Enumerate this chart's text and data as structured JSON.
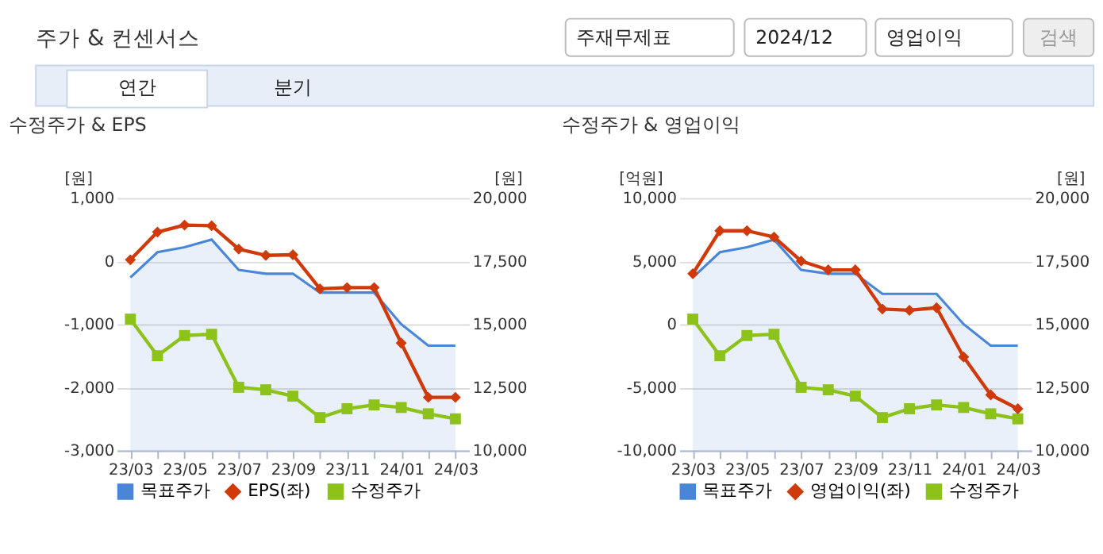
{
  "chart_data": [
    {
      "type": "line",
      "title": "수정주가 & EPS",
      "annotations": [
        "주가 & 컨센서스",
        "주재무제표",
        "2024/12",
        "영업이익",
        "검색",
        "연간",
        "분기"
      ],
      "categories": [
        "23/03",
        null,
        "23/05",
        null,
        "23/07",
        null,
        "23/09",
        null,
        "23/11",
        null,
        "24/01",
        null,
        "24/03"
      ],
      "series": [
        {
          "name": "목표주가",
          "type": "area",
          "axis": "y2",
          "marker": "none",
          "color": "#4a86d8",
          "values": [
            16850,
            17850,
            18050,
            18350,
            17150,
            17000,
            17000,
            16250,
            16250,
            16250,
            15000,
            14150,
            14150
          ]
        },
        {
          "name": "EPS(좌)",
          "type": "line",
          "axis": "y",
          "marker": "diamond",
          "color": "#d03a0b",
          "values": [
            20,
            460,
            570,
            560,
            190,
            90,
            100,
            -440,
            -420,
            -420,
            -1300,
            -2160,
            -2160
          ]
        },
        {
          "name": "수정주가",
          "type": "line",
          "axis": "y2",
          "marker": "square",
          "color": "#8cc21a",
          "values": [
            15200,
            13750,
            14550,
            14600,
            12500,
            12400,
            12150,
            11300,
            11650,
            11800,
            11700,
            11450,
            11250
          ]
        }
      ],
      "ylabel": "[원]",
      "y2label": "[원]",
      "ylim": [
        -3000,
        1000
      ],
      "yticks": [
        {
          "value": -3000,
          "label": "-3,000"
        },
        {
          "value": -2000,
          "label": "-2,000"
        },
        {
          "value": -1000,
          "label": "-1,000"
        },
        0,
        {
          "value": 1000,
          "label": "1,000"
        }
      ],
      "y2lim": [
        10000,
        20000
      ],
      "y2ticks": [
        {
          "value": 10000,
          "label": "10,000"
        },
        {
          "value": 12500,
          "label": "12,500"
        },
        {
          "value": 15000,
          "label": "15,000"
        },
        {
          "value": 17500,
          "label": "17,500"
        },
        {
          "value": 20000,
          "label": "20,000"
        }
      ],
      "grid": "y",
      "legend": "bottom"
    },
    {
      "type": "line",
      "title": "수정주가 & 영업이익",
      "categories": [
        "23/03",
        null,
        "23/05",
        null,
        "23/07",
        null,
        "23/09",
        null,
        "23/11",
        null,
        "24/01",
        null,
        "24/03"
      ],
      "series": [
        {
          "name": "목표주가",
          "type": "area",
          "axis": "y2",
          "marker": "none",
          "color": "#4a86d8",
          "values": [
            16850,
            17850,
            18050,
            18350,
            17150,
            17000,
            17000,
            16200,
            16200,
            16200,
            15000,
            14150,
            14150
          ]
        },
        {
          "name": "영업이익(좌)",
          "type": "line",
          "axis": "y",
          "marker": "diamond",
          "color": "#d03a0b",
          "values": [
            4000,
            7400,
            7400,
            6900,
            5000,
            4300,
            4300,
            1200,
            1100,
            1300,
            -2600,
            -5600,
            -6700
          ]
        },
        {
          "name": "수정주가",
          "type": "line",
          "axis": "y2",
          "marker": "square",
          "color": "#8cc21a",
          "values": [
            15200,
            13750,
            14550,
            14600,
            12500,
            12400,
            12150,
            11300,
            11650,
            11800,
            11700,
            11450,
            11250
          ]
        }
      ],
      "ylabel": "[억원]",
      "y2label": "[원]",
      "ylim": [
        -10000,
        10000
      ],
      "yticks": [
        {
          "value": -10000,
          "label": "-10,000"
        },
        {
          "value": -5000,
          "label": "-5,000"
        },
        0,
        {
          "value": 5000,
          "label": "5,000"
        },
        {
          "value": 10000,
          "label": "10,000"
        }
      ],
      "y2lim": [
        10000,
        20000
      ],
      "y2ticks": [
        {
          "value": 10000,
          "label": "10,000"
        },
        {
          "value": 12500,
          "label": "12,500"
        },
        {
          "value": 15000,
          "label": "15,000"
        },
        {
          "value": 17500,
          "label": "17,500"
        },
        {
          "value": 20000,
          "label": "20,000"
        }
      ],
      "grid": "y",
      "legend": "bottom"
    }
  ]
}
